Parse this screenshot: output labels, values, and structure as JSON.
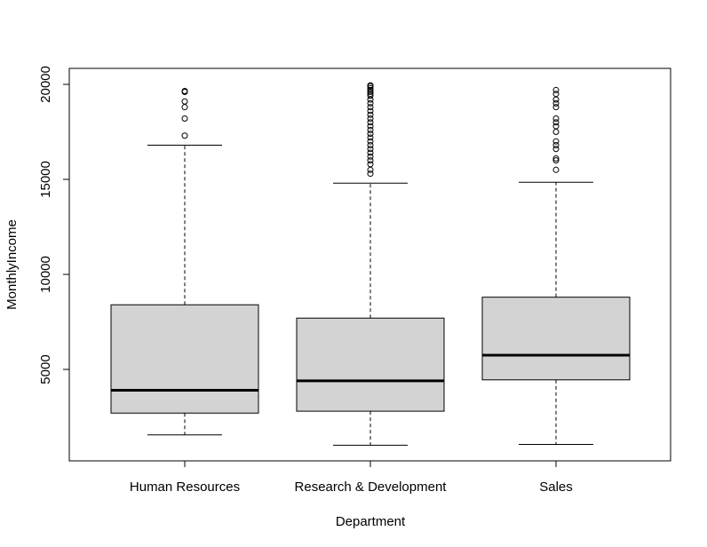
{
  "chart_data": {
    "type": "boxplot",
    "title": "",
    "xlabel": "Department",
    "ylabel": "MonthlyIncome",
    "ylim": [
      0,
      21000
    ],
    "yticks": [
      5000,
      10000,
      15000,
      20000
    ],
    "grid": false,
    "box_color": "#d3d3d3",
    "categories": [
      "Human Resources",
      "Research & Development",
      "Sales"
    ],
    "boxes": [
      {
        "category": "Human Resources",
        "whisker_low": 1555,
        "q1": 2700,
        "median": 3900,
        "q3": 8400,
        "whisker_high": 16800,
        "outliers": [
          17300,
          18200,
          18800,
          19100,
          19600,
          19650
        ]
      },
      {
        "category": "Research & Development",
        "whisker_low": 1009,
        "q1": 2800,
        "median": 4400,
        "q3": 7700,
        "whisker_high": 14800,
        "outliers": [
          15300,
          15500,
          15800,
          16000,
          16200,
          16400,
          16600,
          16800,
          17000,
          17200,
          17400,
          17600,
          17800,
          18000,
          18200,
          18400,
          18600,
          18800,
          19000,
          19200,
          19400,
          19500,
          19600,
          19700,
          19800,
          19900,
          19950
        ]
      },
      {
        "category": "Sales",
        "whisker_low": 1052,
        "q1": 4450,
        "median": 5750,
        "q3": 8800,
        "whisker_high": 14850,
        "outliers": [
          15500,
          16000,
          16100,
          16600,
          16800,
          17000,
          17500,
          17800,
          18000,
          18200,
          18800,
          19000,
          19200,
          19500,
          19700
        ]
      }
    ]
  }
}
